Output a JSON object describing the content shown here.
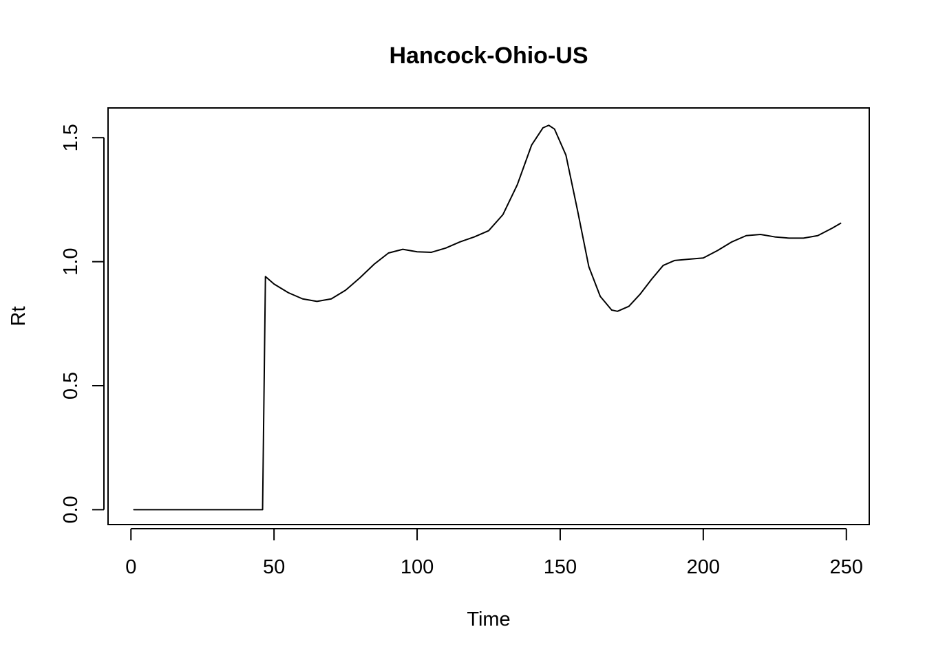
{
  "chart_data": {
    "type": "line",
    "title": "Hancock-Ohio-US",
    "xlabel": "Time",
    "ylabel": "Rt",
    "xlim": [
      -8,
      258
    ],
    "ylim": [
      -0.06,
      1.62
    ],
    "x_ticks": [
      0,
      50,
      100,
      150,
      200,
      250
    ],
    "y_ticks": [
      0.0,
      0.5,
      1.0,
      1.5
    ],
    "x_tick_labels": [
      "0",
      "50",
      "100",
      "150",
      "200",
      "250"
    ],
    "y_tick_labels": [
      "0.0",
      "0.5",
      "1.0",
      "1.5"
    ],
    "grid": false,
    "series": [
      {
        "color": "#000000",
        "points": [
          [
            1,
            0.0
          ],
          [
            10,
            0.0
          ],
          [
            20,
            0.0
          ],
          [
            30,
            0.0
          ],
          [
            40,
            0.0
          ],
          [
            46,
            0.0
          ],
          [
            47,
            0.94
          ],
          [
            50,
            0.91
          ],
          [
            55,
            0.875
          ],
          [
            60,
            0.85
          ],
          [
            65,
            0.84
          ],
          [
            70,
            0.85
          ],
          [
            75,
            0.885
          ],
          [
            80,
            0.935
          ],
          [
            85,
            0.99
          ],
          [
            90,
            1.035
          ],
          [
            95,
            1.05
          ],
          [
            100,
            1.04
          ],
          [
            105,
            1.038
          ],
          [
            110,
            1.055
          ],
          [
            115,
            1.08
          ],
          [
            120,
            1.1
          ],
          [
            125,
            1.125
          ],
          [
            130,
            1.19
          ],
          [
            135,
            1.31
          ],
          [
            140,
            1.47
          ],
          [
            144,
            1.54
          ],
          [
            146,
            1.55
          ],
          [
            148,
            1.535
          ],
          [
            152,
            1.43
          ],
          [
            156,
            1.21
          ],
          [
            160,
            0.98
          ],
          [
            164,
            0.86
          ],
          [
            168,
            0.805
          ],
          [
            170,
            0.8
          ],
          [
            174,
            0.82
          ],
          [
            178,
            0.87
          ],
          [
            182,
            0.93
          ],
          [
            186,
            0.985
          ],
          [
            190,
            1.005
          ],
          [
            195,
            1.01
          ],
          [
            200,
            1.015
          ],
          [
            205,
            1.045
          ],
          [
            210,
            1.08
          ],
          [
            215,
            1.105
          ],
          [
            220,
            1.11
          ],
          [
            225,
            1.1
          ],
          [
            230,
            1.095
          ],
          [
            235,
            1.095
          ],
          [
            240,
            1.105
          ],
          [
            245,
            1.135
          ],
          [
            248,
            1.155
          ]
        ]
      }
    ]
  }
}
